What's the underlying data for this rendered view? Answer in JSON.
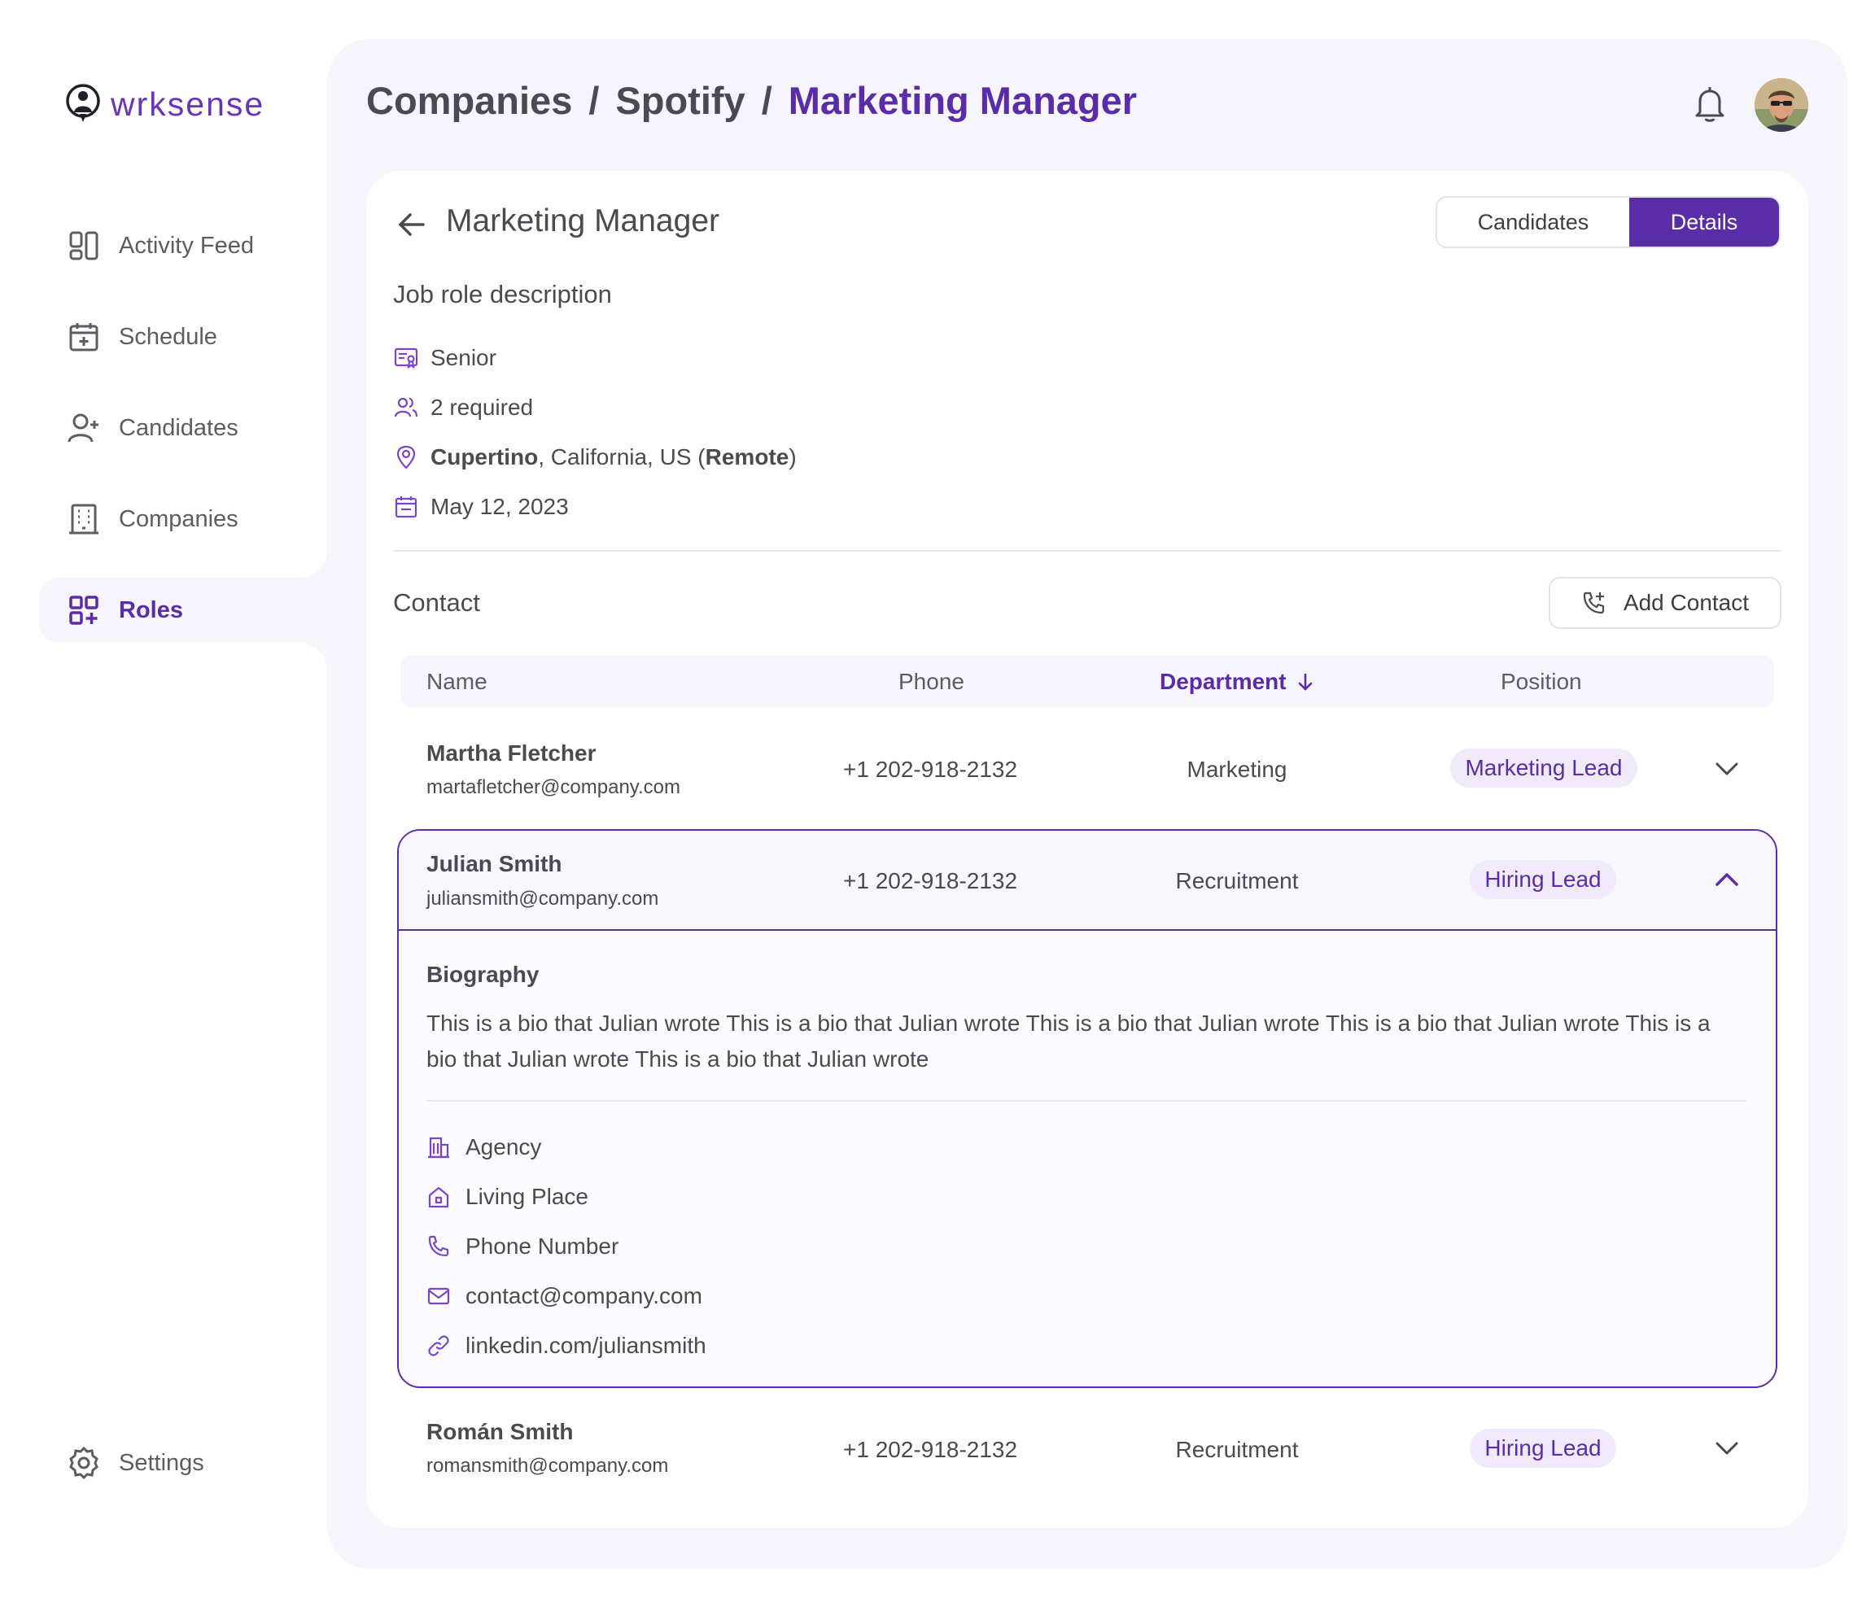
{
  "app": {
    "logo_text": "wrksense"
  },
  "sidebar": {
    "items": [
      {
        "label": "Activity Feed",
        "icon": "layout-icon"
      },
      {
        "label": "Schedule",
        "icon": "calendar-add-icon"
      },
      {
        "label": "Candidates",
        "icon": "user-add-icon"
      },
      {
        "label": "Companies",
        "icon": "building-icon"
      },
      {
        "label": "Roles",
        "icon": "grid-add-icon",
        "active": true
      }
    ],
    "settings_label": "Settings"
  },
  "header": {
    "breadcrumb": [
      "Companies",
      "Spotify",
      "Marketing Manager"
    ],
    "separator": "/"
  },
  "card": {
    "title": "Marketing Manager",
    "tabs": {
      "candidates": "Candidates",
      "details": "Details",
      "active": "details"
    },
    "job_section_title": "Job role description",
    "job": {
      "level": "Senior",
      "required": "2 required",
      "location_city": "Cupertino",
      "location_rest": ", California, US (",
      "location_mode": "Remote",
      "location_close": ")",
      "date": "May 12, 2023"
    },
    "contact_section_title": "Contact",
    "add_contact_label": "Add Contact"
  },
  "table": {
    "headers": {
      "name": "Name",
      "phone": "Phone",
      "department": "Department",
      "position": "Position"
    },
    "sorted_by": "department",
    "rows": [
      {
        "name": "Martha Fletcher",
        "email": "martafletcher@company.com",
        "phone": "+1 202-918-2132",
        "department": "Marketing",
        "position": "Marketing Lead",
        "expanded": false
      },
      {
        "name": "Julian Smith",
        "email": "juliansmith@company.com",
        "phone": "+1 202-918-2132",
        "department": "Recruitment",
        "position": "Hiring Lead",
        "expanded": true
      },
      {
        "name": "Román Smith",
        "email": "romansmith@company.com",
        "phone": "+1 202-918-2132",
        "department": "Recruitment",
        "position": "Hiring Lead",
        "expanded": false
      }
    ]
  },
  "expanded": {
    "bio_title": "Biography",
    "bio_text": "This is a bio that Julian wrote This is a bio that Julian wrote This is a bio that Julian wrote This is a bio that Julian wrote This is a bio that Julian wrote This is a bio that Julian wrote",
    "details": [
      {
        "label": "Agency",
        "icon": "building-icon"
      },
      {
        "label": "Living Place",
        "icon": "home-icon"
      },
      {
        "label": "Phone Number",
        "icon": "phone-icon"
      },
      {
        "label": "contact@company.com",
        "icon": "mail-icon"
      },
      {
        "label": "linkedin.com/juliansmith",
        "icon": "link-icon"
      }
    ]
  },
  "colors": {
    "accent": "#5b2ca8",
    "panel_bg": "#f6f5fc",
    "chip_bg": "#efebfa",
    "text": "#4a4a52"
  }
}
